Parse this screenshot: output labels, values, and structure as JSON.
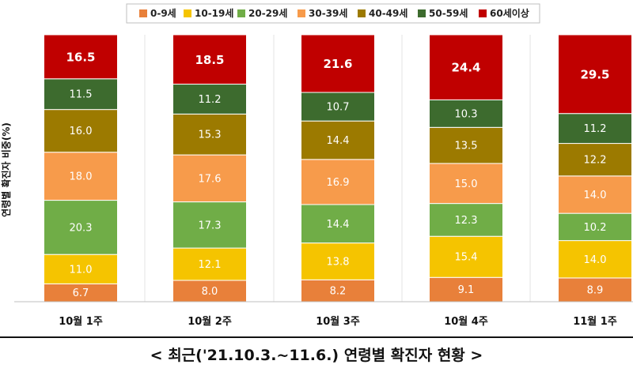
{
  "chart_data": {
    "type": "bar",
    "stacked": true,
    "percent_stacked": true,
    "title": "< 최근('21.10.3.~11.6.) 연령별 확진자 현황 >",
    "ylabel": "연령별 확진자 비중(%)",
    "xlabel": "",
    "categories": [
      "10월 1주",
      "10월 2주",
      "10월 3주",
      "10월 4주",
      "11월 1주"
    ],
    "series": [
      {
        "name": "0-9세",
        "color": "#E8803A",
        "values": [
          6.7,
          8.0,
          8.2,
          9.1,
          8.9
        ]
      },
      {
        "name": "10-19세",
        "color": "#F5C400",
        "values": [
          11.0,
          12.1,
          13.8,
          15.4,
          14.0
        ]
      },
      {
        "name": "20-29세",
        "color": "#70AD47",
        "values": [
          20.3,
          17.3,
          14.4,
          12.3,
          10.2
        ]
      },
      {
        "name": "30-39세",
        "color": "#F79B4B",
        "values": [
          18.0,
          17.6,
          16.9,
          15.0,
          14.0
        ]
      },
      {
        "name": "40-49세",
        "color": "#9C7A00",
        "values": [
          16.0,
          15.3,
          14.4,
          13.5,
          12.2
        ]
      },
      {
        "name": "50-59세",
        "color": "#3D6B2E",
        "values": [
          11.5,
          11.2,
          10.7,
          10.3,
          11.2
        ]
      },
      {
        "name": "60세이상",
        "color": "#C00000",
        "values": [
          16.5,
          18.5,
          21.6,
          24.4,
          29.5
        ]
      }
    ],
    "ylim": [
      0,
      100
    ],
    "grid": false,
    "legend_position": "top"
  }
}
